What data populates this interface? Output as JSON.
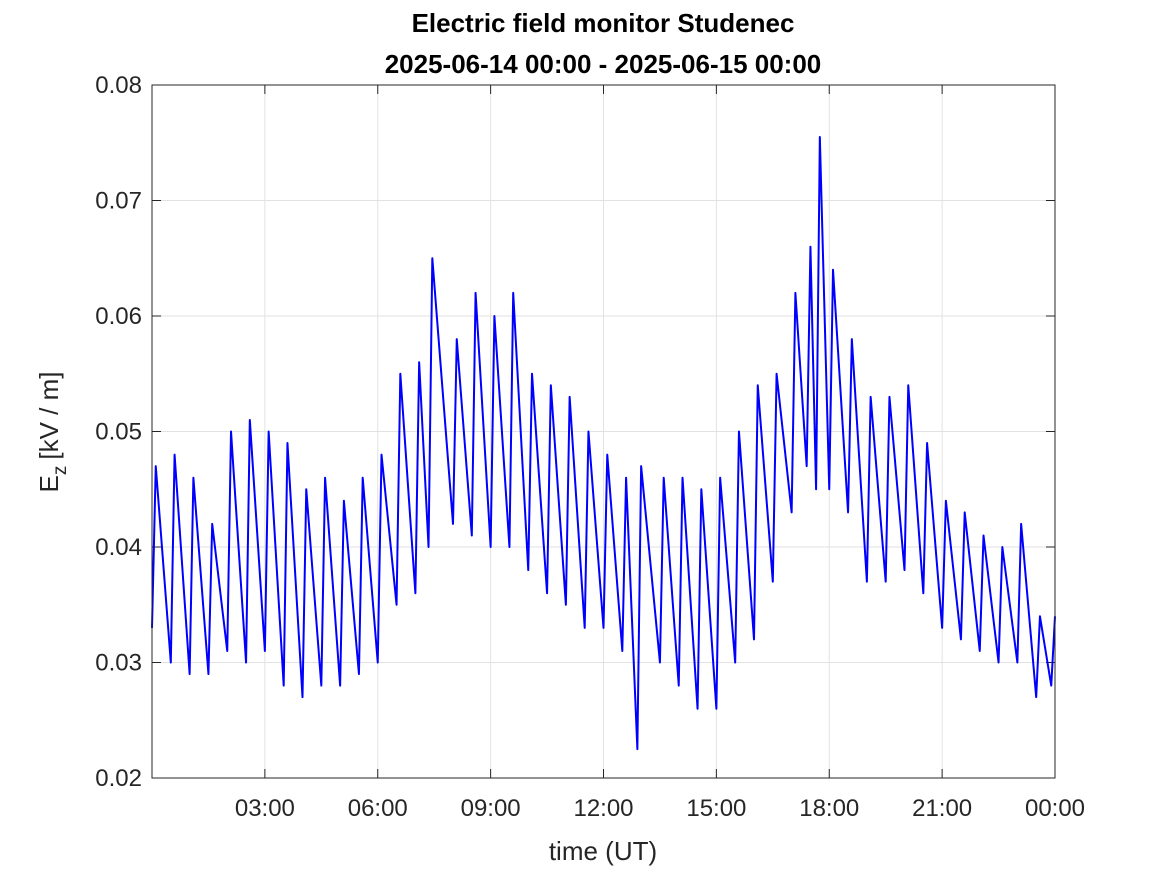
{
  "chart_data": {
    "type": "line",
    "title": [
      "Electric field monitor Studenec",
      "2025-06-14 00:00 - 2025-06-15 00:00"
    ],
    "xlabel": "time (UT)",
    "ylabel": {
      "base": "E",
      "sub": "z",
      "unit": "[kV / m]"
    },
    "x": [
      0,
      0.1,
      0.5,
      0.6,
      1,
      1.1,
      1.5,
      1.6,
      2,
      2.1,
      2.5,
      2.6,
      3,
      3.1,
      3.5,
      3.6,
      4,
      4.1,
      4.5,
      4.6,
      5,
      5.1,
      5.5,
      5.6,
      6,
      6.1,
      6.5,
      6.6,
      7,
      7.1,
      7.35,
      7.45,
      8,
      8.1,
      8.5,
      8.6,
      9,
      9.1,
      9.5,
      9.6,
      10,
      10.1,
      10.5,
      10.6,
      11,
      11.1,
      11.5,
      11.6,
      12,
      12.1,
      12.5,
      12.6,
      12.9,
      13,
      13.5,
      13.6,
      14,
      14.1,
      14.5,
      14.6,
      15,
      15.1,
      15.5,
      15.6,
      16,
      16.1,
      16.5,
      16.6,
      17,
      17.1,
      17.4,
      17.5,
      17.65,
      17.75,
      18,
      18.1,
      18.5,
      18.6,
      19,
      19.1,
      19.5,
      19.6,
      20,
      20.1,
      20.5,
      20.6,
      21,
      21.1,
      21.5,
      21.6,
      22,
      22.1,
      22.5,
      22.6,
      23,
      23.1,
      23.5,
      23.6,
      23.9,
      24
    ],
    "series": [
      {
        "color": "#0000ff",
        "values": [
          0.033,
          0.047,
          0.03,
          0.048,
          0.029,
          0.046,
          0.029,
          0.042,
          0.031,
          0.05,
          0.03,
          0.051,
          0.031,
          0.05,
          0.028,
          0.049,
          0.027,
          0.045,
          0.028,
          0.046,
          0.028,
          0.044,
          0.029,
          0.046,
          0.03,
          0.048,
          0.035,
          0.055,
          0.036,
          0.056,
          0.04,
          0.065,
          0.042,
          0.058,
          0.041,
          0.062,
          0.04,
          0.06,
          0.04,
          0.062,
          0.038,
          0.055,
          0.036,
          0.054,
          0.035,
          0.053,
          0.033,
          0.05,
          0.033,
          0.048,
          0.031,
          0.046,
          0.0225,
          0.047,
          0.03,
          0.046,
          0.028,
          0.046,
          0.026,
          0.045,
          0.026,
          0.046,
          0.03,
          0.05,
          0.032,
          0.054,
          0.037,
          0.055,
          0.043,
          0.062,
          0.047,
          0.066,
          0.045,
          0.0755,
          0.045,
          0.064,
          0.043,
          0.058,
          0.037,
          0.053,
          0.037,
          0.053,
          0.038,
          0.054,
          0.036,
          0.049,
          0.033,
          0.044,
          0.032,
          0.043,
          0.031,
          0.041,
          0.03,
          0.04,
          0.03,
          0.042,
          0.027,
          0.034,
          0.028,
          0.034
        ]
      }
    ],
    "xlim": [
      0,
      24
    ],
    "xticks": [
      {
        "value": 3,
        "label": "03:00"
      },
      {
        "value": 6,
        "label": "06:00"
      },
      {
        "value": 9,
        "label": "09:00"
      },
      {
        "value": 12,
        "label": "12:00"
      },
      {
        "value": 15,
        "label": "15:00"
      },
      {
        "value": 18,
        "label": "18:00"
      },
      {
        "value": 21,
        "label": "21:00"
      },
      {
        "value": 24,
        "label": "00:00"
      }
    ],
    "ylim": [
      0.02,
      0.08
    ],
    "yticks": [
      {
        "value": 0.02,
        "label": "0.02"
      },
      {
        "value": 0.03,
        "label": "0.03"
      },
      {
        "value": 0.04,
        "label": "0.04"
      },
      {
        "value": 0.05,
        "label": "0.05"
      },
      {
        "value": 0.06,
        "label": "0.06"
      },
      {
        "value": 0.07,
        "label": "0.07"
      },
      {
        "value": 0.08,
        "label": "0.08"
      }
    ],
    "grid": true
  }
}
